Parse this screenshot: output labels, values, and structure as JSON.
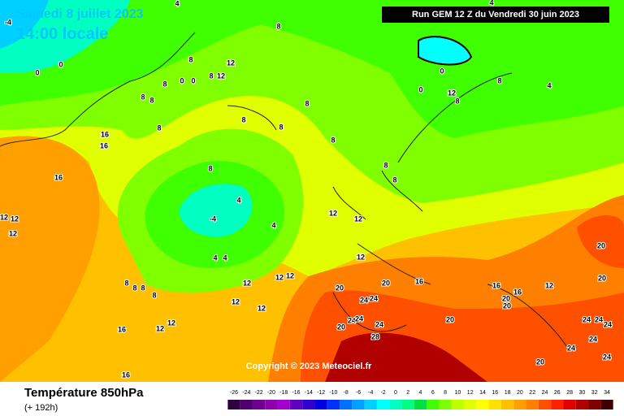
{
  "header": {
    "date": "Samedi 8 juillet 2023",
    "time": "14:00 locale",
    "run": "Run GEM 12 Z du Vendredi 30 juin 2023"
  },
  "copyright": "Copyright © 2023 Meteociel.fr",
  "footer": {
    "title": "Température 850hPa",
    "lead": "(+ 192h)"
  },
  "contour_labels": [
    4,
    -4,
    8,
    8,
    12,
    0,
    0,
    8,
    12,
    0,
    0,
    8,
    8,
    8,
    8,
    8,
    8,
    8,
    16,
    16,
    8,
    8,
    8,
    8,
    16,
    4,
    -4,
    4,
    12,
    12,
    12,
    12,
    12,
    4,
    4,
    12,
    12,
    12,
    12,
    20,
    20,
    16,
    8,
    8,
    8,
    8,
    12,
    12,
    24,
    24,
    20,
    16,
    16,
    12,
    20,
    20,
    24,
    24,
    20,
    24,
    20,
    20,
    16,
    12,
    12,
    28,
    24,
    24,
    24,
    24,
    24,
    24,
    20,
    16,
    0,
    0,
    12,
    8,
    8,
    4,
    4
  ],
  "color_scale": {
    "ticks": [
      -26,
      -24,
      -22,
      -20,
      -18,
      -16,
      -14,
      -12,
      -10,
      -8,
      -6,
      -4,
      -2,
      0,
      2,
      4,
      6,
      8,
      10,
      12,
      14,
      16,
      18,
      20,
      22,
      24,
      26,
      28,
      30,
      32,
      34
    ],
    "colors": [
      "#300040",
      "#500070",
      "#700090",
      "#9000b0",
      "#a000d0",
      "#6000c0",
      "#3000d0",
      "#0000e0",
      "#0030ff",
      "#0070ff",
      "#00a0ff",
      "#00d0ff",
      "#00ffff",
      "#00ffc0",
      "#00ff80",
      "#00e040",
      "#40ff00",
      "#80ff00",
      "#c0ff00",
      "#e0ff00",
      "#ffff00",
      "#ffe000",
      "#ffc000",
      "#ffa000",
      "#ff8000",
      "#ff5000",
      "#ff2000",
      "#e00000",
      "#b00000",
      "#800000",
      "#400000"
    ]
  }
}
